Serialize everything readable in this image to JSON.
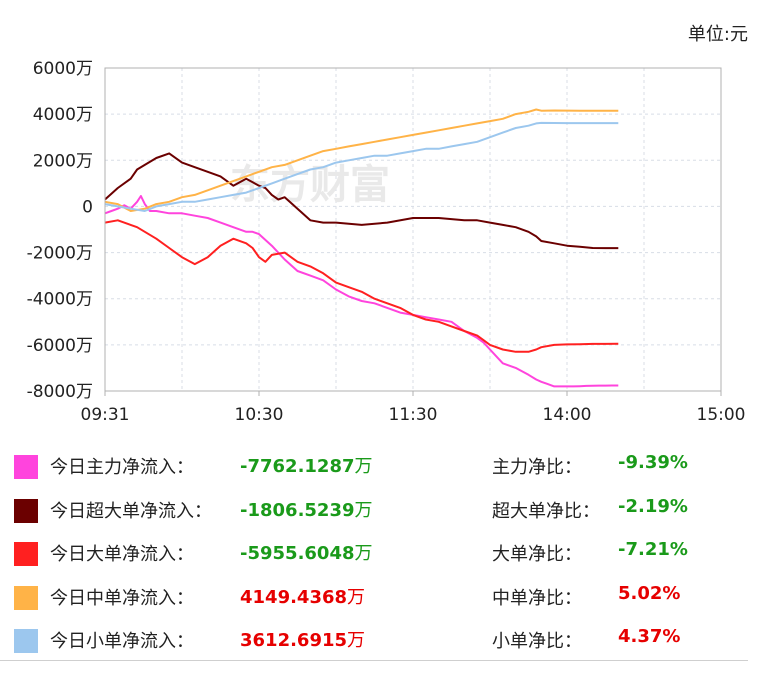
{
  "unit_label": "单位:元",
  "watermark": "东方财富",
  "chart_data": {
    "type": "line",
    "x_ticks": [
      "09:31",
      "10:30",
      "11:30",
      "14:00",
      "15:00"
    ],
    "y_ticks": [
      "6000万",
      "4000万",
      "2000万",
      "0",
      "-2000万",
      "-4000万",
      "-6000万",
      "-8000万"
    ],
    "ylim": [
      -8000,
      6000
    ],
    "y_unit": "万",
    "grid": true,
    "series": [
      {
        "name": "今日主力净流入",
        "color": "#ff44dd",
        "x": [
          0,
          5,
          10,
          15,
          20,
          25,
          28,
          31,
          35,
          40,
          50,
          60,
          70,
          80,
          90,
          100,
          110,
          115,
          120,
          130,
          140,
          150,
          160,
          170,
          180,
          190,
          200,
          210,
          220,
          230,
          240,
          250,
          260,
          270,
          280,
          290,
          295,
          300,
          305,
          310,
          320,
          330,
          336,
          340,
          345,
          350,
          355,
          360,
          365,
          370,
          375,
          380,
          385,
          390,
          395,
          400
        ],
        "y": [
          -300,
          -200,
          -100,
          50,
          -100,
          200,
          450,
          100,
          -200,
          -200,
          -300,
          -300,
          -400,
          -500,
          -700,
          -900,
          -1100,
          -1100,
          -1200,
          -1700,
          -2300,
          -2800,
          -3000,
          -3200,
          -3600,
          -3900,
          -4100,
          -4200,
          -4400,
          -4600,
          -4700,
          -4800,
          -4900,
          -5000,
          -5400,
          -5700,
          -5900,
          -6200,
          -6500,
          -6800,
          -7000,
          -7300,
          -7500,
          -7600,
          -7700,
          -7800,
          -7800,
          -7800,
          -7800,
          -7790,
          -7780,
          -7770,
          -7768,
          -7765,
          -7763,
          -7762.1287
        ]
      },
      {
        "name": "今日超大单净流入",
        "color": "#6b0000",
        "x": [
          0,
          10,
          20,
          25,
          31,
          40,
          50,
          60,
          70,
          80,
          90,
          100,
          110,
          120,
          125,
          130,
          135,
          140,
          150,
          160,
          170,
          180,
          200,
          220,
          240,
          260,
          280,
          290,
          300,
          310,
          320,
          330,
          336,
          340,
          350,
          360,
          370,
          380,
          390,
          400
        ],
        "y": [
          300,
          800,
          1200,
          1600,
          1800,
          2100,
          2300,
          1900,
          1700,
          1500,
          1300,
          900,
          1200,
          900,
          800,
          500,
          300,
          400,
          -100,
          -600,
          -700,
          -700,
          -800,
          -700,
          -500,
          -500,
          -600,
          -600,
          -700,
          -800,
          -900,
          -1100,
          -1300,
          -1500,
          -1600,
          -1700,
          -1750,
          -1800,
          -1805,
          -1806.5239
        ]
      },
      {
        "name": "今日大单净流入",
        "color": "#ff2020",
        "x": [
          0,
          10,
          20,
          25,
          31,
          40,
          50,
          60,
          70,
          80,
          90,
          100,
          110,
          115,
          120,
          125,
          130,
          140,
          150,
          160,
          170,
          180,
          190,
          200,
          210,
          220,
          230,
          240,
          250,
          260,
          270,
          280,
          290,
          295,
          300,
          310,
          320,
          330,
          336,
          340,
          350,
          360,
          370,
          380,
          390,
          400
        ],
        "y": [
          -700,
          -600,
          -800,
          -900,
          -1100,
          -1400,
          -1800,
          -2200,
          -2500,
          -2200,
          -1700,
          -1400,
          -1600,
          -1800,
          -2200,
          -2400,
          -2100,
          -2000,
          -2400,
          -2600,
          -2900,
          -3300,
          -3500,
          -3700,
          -4000,
          -4200,
          -4400,
          -4700,
          -4900,
          -5000,
          -5200,
          -5400,
          -5600,
          -5800,
          -6000,
          -6200,
          -6300,
          -6300,
          -6200,
          -6100,
          -6000,
          -5980,
          -5970,
          -5960,
          -5958,
          -5955.6048
        ]
      },
      {
        "name": "今日中单净流入",
        "color": "#ffb347",
        "x": [
          0,
          10,
          20,
          31,
          40,
          50,
          60,
          70,
          80,
          90,
          100,
          110,
          120,
          130,
          140,
          150,
          160,
          170,
          180,
          190,
          200,
          210,
          220,
          230,
          240,
          250,
          260,
          270,
          280,
          290,
          300,
          310,
          320,
          330,
          336,
          340,
          350,
          360,
          370,
          380,
          390,
          400
        ],
        "y": [
          200,
          100,
          -200,
          -100,
          100,
          200,
          400,
          500,
          700,
          900,
          1100,
          1300,
          1500,
          1700,
          1800,
          2000,
          2200,
          2400,
          2500,
          2600,
          2700,
          2800,
          2900,
          3000,
          3100,
          3200,
          3300,
          3400,
          3500,
          3600,
          3700,
          3800,
          4000,
          4100,
          4200,
          4150,
          4160,
          4155,
          4150,
          4150,
          4149,
          4149.4368
        ]
      },
      {
        "name": "今日小单净流入",
        "color": "#9cc7ee",
        "x": [
          0,
          10,
          20,
          31,
          40,
          50,
          60,
          70,
          80,
          90,
          100,
          110,
          120,
          130,
          140,
          150,
          160,
          170,
          180,
          190,
          200,
          210,
          220,
          230,
          240,
          250,
          260,
          270,
          280,
          290,
          300,
          310,
          320,
          330,
          336,
          340,
          350,
          360,
          370,
          380,
          390,
          400
        ],
        "y": [
          100,
          0,
          -100,
          -200,
          0,
          100,
          200,
          200,
          300,
          400,
          500,
          600,
          800,
          1000,
          1200,
          1400,
          1600,
          1700,
          1900,
          2000,
          2100,
          2200,
          2200,
          2300,
          2400,
          2500,
          2500,
          2600,
          2700,
          2800,
          3000,
          3200,
          3400,
          3500,
          3600,
          3620,
          3615,
          3613,
          3612,
          3612,
          3612,
          3612.6915
        ]
      }
    ]
  },
  "legend": [
    {
      "label": "今日主力净流入：",
      "value": "-7762.1287",
      "unit": "万",
      "ratio_label": "主力净比：",
      "ratio": "-9.39%",
      "sign": "neg",
      "color": "#ff44dd"
    },
    {
      "label": "今日超大单净流入：",
      "value": "-1806.5239",
      "unit": "万",
      "ratio_label": "超大单净比：",
      "ratio": "-2.19%",
      "sign": "neg",
      "color": "#6b0000"
    },
    {
      "label": "今日大单净流入：",
      "value": "-5955.6048",
      "unit": "万",
      "ratio_label": "大单净比：",
      "ratio": "-7.21%",
      "sign": "neg",
      "color": "#ff2020"
    },
    {
      "label": "今日中单净流入：",
      "value": "4149.4368",
      "unit": "万",
      "ratio_label": "中单净比：",
      "ratio": "5.02%",
      "sign": "pos",
      "color": "#ffb347"
    },
    {
      "label": "今日小单净流入：",
      "value": "3612.6915",
      "unit": "万",
      "ratio_label": "小单净比：",
      "ratio": "4.37%",
      "sign": "pos",
      "color": "#9cc7ee"
    }
  ]
}
